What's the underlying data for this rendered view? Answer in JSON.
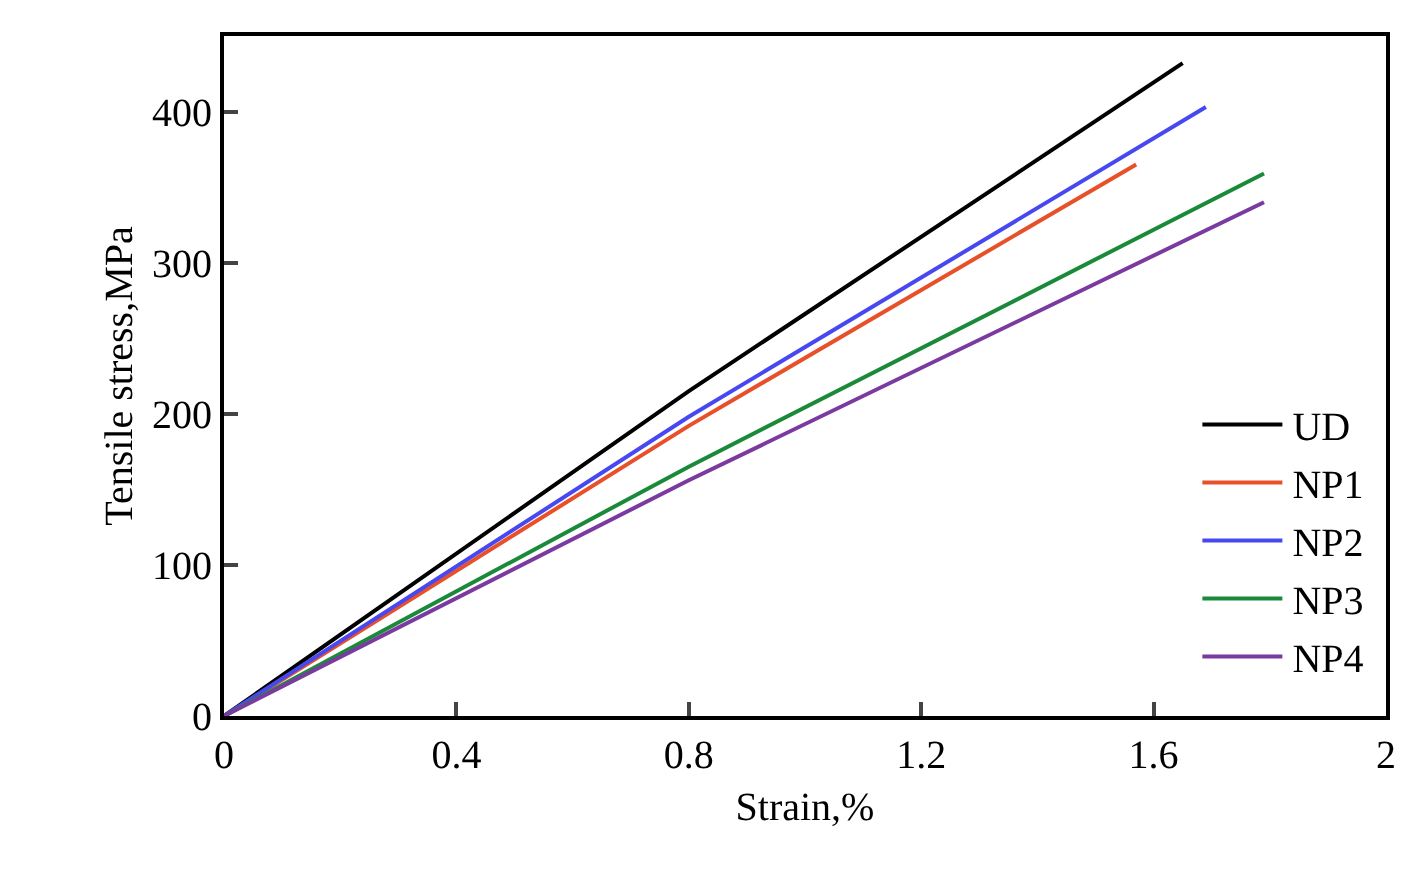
{
  "chart_data": {
    "type": "line",
    "xlabel": "Strain,%",
    "ylabel": "Tensile stress,MPa",
    "xlim": [
      0,
      2
    ],
    "xticks": [
      0,
      0.4,
      0.8,
      1.2,
      1.6,
      2
    ],
    "ylim": [
      0,
      450
    ],
    "yticks": [
      0,
      100,
      200,
      300,
      400
    ],
    "legend": "bottom right",
    "marker": "none",
    "line_style": "solid",
    "series": [
      {
        "name": "UD",
        "color": "#000000",
        "x": [
          0,
          0.8,
          1.65
        ],
        "values": [
          0,
          215,
          432
        ]
      },
      {
        "name": "NP1",
        "color": "#e8502a",
        "x": [
          0,
          0.8,
          1.57
        ],
        "values": [
          0,
          192,
          365
        ]
      },
      {
        "name": "NP2",
        "color": "#4848f0",
        "x": [
          0,
          0.8,
          1.69
        ],
        "values": [
          0,
          198,
          403
        ]
      },
      {
        "name": "NP3",
        "color": "#1a8a3a",
        "x": [
          0,
          0.8,
          1.79
        ],
        "values": [
          0,
          165,
          359
        ]
      },
      {
        "name": "NP4",
        "color": "#7a3aa0",
        "x": [
          0,
          0.8,
          1.79
        ],
        "values": [
          0,
          156,
          340
        ]
      }
    ]
  }
}
